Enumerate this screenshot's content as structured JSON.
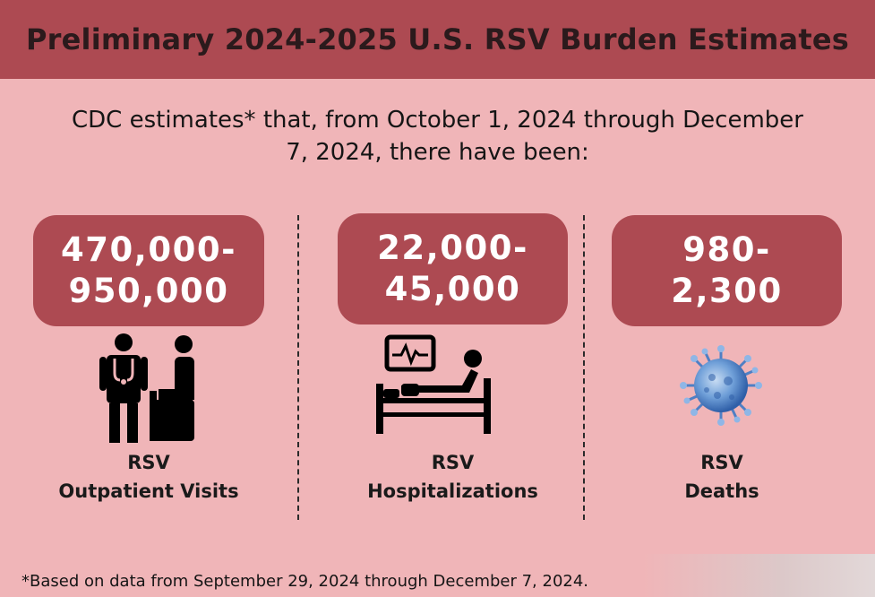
{
  "header": {
    "title": "Preliminary 2024-2025 U.S. RSV Burden Estimates"
  },
  "intro": {
    "line1": "CDC estimates* that, from October 1, 2024 through December",
    "line2": "7, 2024, there have been:"
  },
  "stats": [
    {
      "range_low": "470,000-",
      "range_high": "950,000",
      "label_line1": "RSV",
      "label_line2": "Outpatient Visits",
      "icon": "doctor-patient-icon"
    },
    {
      "range_low": "22,000-",
      "range_high": "45,000",
      "label_line1": "RSV",
      "label_line2": "Hospitalizations",
      "icon": "hospital-bed-icon"
    },
    {
      "range_low": "980-",
      "range_high": "2,300",
      "label_line1": "RSV",
      "label_line2": "Deaths",
      "icon": "virus-icon"
    }
  ],
  "footnote": "*Based on data from September 29, 2024 through December 7, 2024.",
  "colors": {
    "header_bg": "#ad4a52",
    "page_bg": "#f0b5b8",
    "badge_bg": "#ad4a52",
    "virus": "#6f9fd8"
  }
}
